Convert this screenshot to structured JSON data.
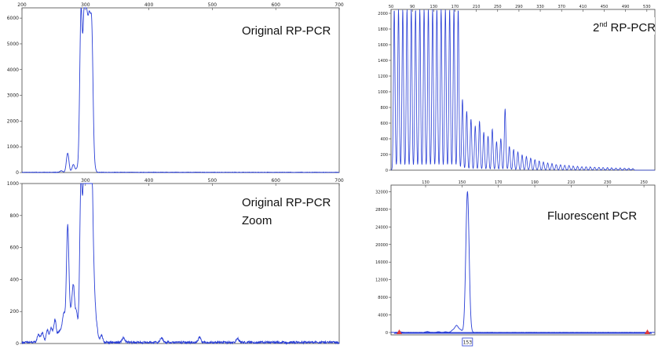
{
  "chart_data": [
    {
      "id": "p1",
      "type": "line",
      "label": "Original RP-PCR",
      "xlim": [
        200,
        700
      ],
      "ylim": [
        0,
        6400
      ],
      "x_ticks": [
        200,
        300,
        400,
        500,
        600,
        700
      ],
      "y_ticks": [
        0,
        1000,
        2000,
        3000,
        4000,
        5000,
        6000
      ],
      "grid": false,
      "color": "#2a3fd6",
      "peaks": [
        [
          262,
          60
        ],
        [
          272,
          750
        ],
        [
          281,
          300
        ],
        [
          287,
          150
        ],
        [
          293,
          6150
        ],
        [
          298,
          5600
        ],
        [
          302,
          4950
        ],
        [
          306,
          4900
        ],
        [
          310,
          5200
        ],
        [
          314,
          180
        ]
      ]
    },
    {
      "id": "p2",
      "type": "line",
      "label": "Original RP-PCR",
      "label_line2": "Zoom",
      "xlim": [
        200,
        700
      ],
      "ylim": [
        0,
        1000
      ],
      "x_ticks": [
        300,
        400,
        500,
        600,
        700
      ],
      "y_ticks": [
        0,
        200,
        400,
        600,
        800,
        1000
      ],
      "grid": false,
      "color": "#2a3fd6",
      "peaks": [
        [
          226,
          50
        ],
        [
          232,
          60
        ],
        [
          240,
          75
        ],
        [
          246,
          90
        ],
        [
          252,
          140
        ],
        [
          258,
          60
        ],
        [
          262,
          65
        ],
        [
          266,
          170
        ],
        [
          272,
          730
        ],
        [
          277,
          140
        ],
        [
          281,
          340
        ],
        [
          286,
          180
        ],
        [
          293,
          1000
        ],
        [
          298,
          1000
        ],
        [
          302,
          1000
        ],
        [
          306,
          1000
        ],
        [
          310,
          1000
        ],
        [
          314,
          260
        ],
        [
          318,
          80
        ],
        [
          325,
          45
        ],
        [
          360,
          30
        ],
        [
          420,
          30
        ],
        [
          480,
          35
        ],
        [
          540,
          25
        ]
      ]
    },
    {
      "id": "p3",
      "type": "line",
      "label": "2",
      "label_sup": "nd",
      "label_rest": " RP-PCR",
      "xlim": [
        50,
        545
      ],
      "ylim": [
        0,
        2050
      ],
      "x_ticks": [
        50,
        90,
        130,
        170,
        210,
        250,
        290,
        330,
        370,
        410,
        450,
        490,
        530
      ],
      "y_ticks": [
        0,
        200,
        400,
        600,
        800,
        1000,
        1200,
        1400,
        1600,
        1800,
        2000
      ],
      "grid": false,
      "color": "#2a3fd6",
      "peaks": [
        [
          56,
          2050
        ],
        [
          64,
          2050
        ],
        [
          72,
          2050
        ],
        [
          80,
          2050
        ],
        [
          88,
          2050
        ],
        [
          96,
          2050
        ],
        [
          104,
          2050
        ],
        [
          112,
          2050
        ],
        [
          120,
          2050
        ],
        [
          128,
          2050
        ],
        [
          136,
          2050
        ],
        [
          144,
          2050
        ],
        [
          152,
          2050
        ],
        [
          160,
          2050
        ],
        [
          168,
          2050
        ],
        [
          176,
          2050
        ],
        [
          184,
          900
        ],
        [
          192,
          750
        ],
        [
          200,
          650
        ],
        [
          208,
          560
        ],
        [
          216,
          620
        ],
        [
          224,
          480
        ],
        [
          232,
          430
        ],
        [
          240,
          520
        ],
        [
          248,
          360
        ],
        [
          256,
          400
        ],
        [
          264,
          780
        ],
        [
          272,
          300
        ],
        [
          280,
          260
        ],
        [
          288,
          230
        ],
        [
          296,
          190
        ],
        [
          304,
          170
        ],
        [
          312,
          150
        ],
        [
          320,
          130
        ],
        [
          328,
          115
        ],
        [
          336,
          100
        ],
        [
          344,
          90
        ],
        [
          352,
          80
        ],
        [
          360,
          70
        ],
        [
          368,
          65
        ],
        [
          376,
          60
        ],
        [
          384,
          55
        ],
        [
          392,
          50
        ],
        [
          400,
          45
        ],
        [
          408,
          42
        ],
        [
          416,
          40
        ],
        [
          424,
          38
        ],
        [
          432,
          35
        ],
        [
          440,
          32
        ],
        [
          448,
          30
        ],
        [
          456,
          28
        ],
        [
          464,
          26
        ],
        [
          472,
          25
        ],
        [
          480,
          24
        ],
        [
          488,
          22
        ],
        [
          496,
          20
        ],
        [
          504,
          18
        ]
      ]
    },
    {
      "id": "p4",
      "type": "line",
      "label": "Fluorescent PCR",
      "xlim": [
        111,
        256
      ],
      "ylim": [
        0,
        33500
      ],
      "x_ticks": [
        130,
        150,
        170,
        190,
        210,
        230,
        250
      ],
      "y_ticks": [
        0,
        4000,
        8000,
        12000,
        16000,
        20000,
        24000,
        28000,
        32000
      ],
      "grid": false,
      "color": "#2a3fd6",
      "peaks": [
        [
          116,
          120
        ],
        [
          131,
          180
        ],
        [
          137,
          150
        ],
        [
          141,
          120
        ],
        [
          145,
          500
        ],
        [
          147,
          1500
        ],
        [
          149,
          600
        ],
        [
          153,
          32000
        ]
      ],
      "marker": "153"
    }
  ]
}
